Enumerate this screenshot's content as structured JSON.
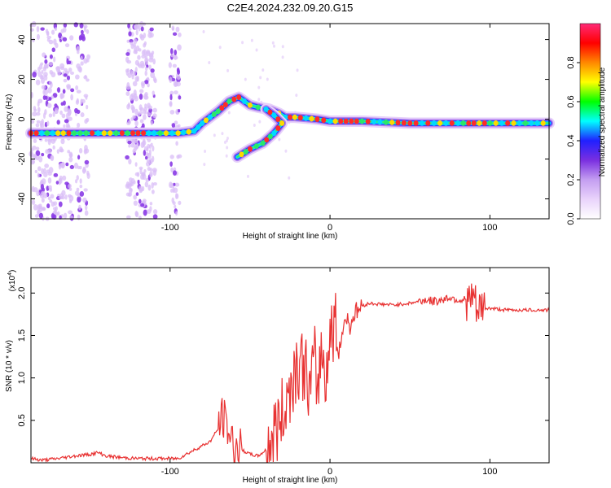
{
  "title": "C2E4.2024.232.09.20.G15",
  "chart_data": [
    {
      "type": "heatmap",
      "xlabel": "Height of straight line (km)",
      "ylabel": "Frequency (Hz)",
      "xlim": [
        -187,
        137
      ],
      "ylim": [
        -50,
        48
      ],
      "x_ticks": [
        -100,
        0,
        100
      ],
      "y_ticks": [
        -40,
        -20,
        0,
        20,
        40
      ],
      "colorbar": {
        "label": "Normalized spectral amplitude",
        "range": [
          0,
          1
        ],
        "ticks": [
          "0.0",
          "0.2",
          "0.4",
          "0.6",
          "0.8"
        ],
        "colors": [
          "#ffffff",
          "#e9d3fb",
          "#c49ef1",
          "#7a2fe0",
          "#2020ff",
          "#00ffff",
          "#00ff00",
          "#ffff00",
          "#ff8800",
          "#ff0000",
          "#ff2a77"
        ]
      },
      "traces": [
        {
          "name": "",
          "points": [
            [
              -187,
              -7
            ],
            [
              -160,
              -7
            ],
            [
              -130,
              -7
            ],
            [
              -110,
              -7
            ],
            [
              -95,
              -7
            ],
            [
              -85,
              -6
            ],
            [
              -80,
              -2
            ],
            [
              -75,
              1
            ],
            [
              -70,
              4
            ],
            [
              -63,
              9
            ],
            [
              -57,
              11
            ],
            [
              -50,
              7
            ],
            [
              -45,
              6
            ],
            [
              -38,
              5
            ],
            [
              -32,
              3
            ],
            [
              -28,
              1
            ],
            [
              -22,
              1
            ],
            [
              -15,
              0.5
            ],
            [
              -8,
              0
            ],
            [
              0,
              -1
            ],
            [
              20,
              -1
            ],
            [
              50,
              -2
            ],
            [
              80,
              -2
            ],
            [
              100,
              -2
            ],
            [
              137,
              -2
            ]
          ]
        },
        {
          "name": "",
          "points": [
            [
              -40,
              5
            ],
            [
              -35,
              2
            ],
            [
              -30,
              -2
            ],
            [
              -35,
              -7
            ],
            [
              -42,
              -12
            ],
            [
              -50,
              -15
            ],
            [
              -58,
              -19
            ]
          ]
        }
      ]
    },
    {
      "type": "line",
      "xlabel": "Height of straight line (km)",
      "ylabel": "SNR (10 * v/v)",
      "y_multiplier": "(x10",
      "y_multiplier_exp": "4",
      "y_multiplier_close": ")",
      "xlim": [
        -187,
        137
      ],
      "ylim": [
        0,
        2.3
      ],
      "x_ticks": [
        -100,
        0,
        100
      ],
      "y_ticks": [
        0.5,
        1.0,
        1.5,
        2.0
      ],
      "y_tick_labels": [
        "0.5",
        "1.0",
        "1.5",
        "2.0"
      ],
      "color": "#e83232",
      "x": [
        -187,
        -180,
        -170,
        -160,
        -150,
        -145,
        -140,
        -130,
        -120,
        -110,
        -100,
        -95,
        -90,
        -85,
        -80,
        -75,
        -70,
        -67,
        -63,
        -60,
        -55,
        -50,
        -45,
        -40,
        -35,
        -30,
        -27,
        -25,
        -22,
        -20,
        -17,
        -15,
        -12,
        -10,
        -8,
        -5,
        -3,
        0,
        3,
        5,
        8,
        10,
        12,
        15,
        20,
        25,
        30,
        40,
        50,
        55,
        60,
        65,
        70,
        75,
        80,
        85,
        88,
        90,
        92,
        95,
        100,
        110,
        120,
        130,
        137
      ],
      "values": [
        0.05,
        0.03,
        0.05,
        0.08,
        0.1,
        0.12,
        0.08,
        0.06,
        0.05,
        0.05,
        0.05,
        0.05,
        0.1,
        0.15,
        0.2,
        0.25,
        0.4,
        0.55,
        0.35,
        0.2,
        0.15,
        0.1,
        0.08,
        0.15,
        0.35,
        0.55,
        0.75,
        0.9,
        1.1,
        1.2,
        1.15,
        1.05,
        0.8,
        1.25,
        0.9,
        1.35,
        1.05,
        1.45,
        1.7,
        1.3,
        1.55,
        1.75,
        1.6,
        1.75,
        1.85,
        1.88,
        1.87,
        1.86,
        1.88,
        1.9,
        1.92,
        1.9,
        1.92,
        1.95,
        1.92,
        1.92,
        1.9,
        1.95,
        1.75,
        1.82,
        1.82,
        1.8,
        1.8,
        1.8,
        1.8
      ]
    }
  ]
}
